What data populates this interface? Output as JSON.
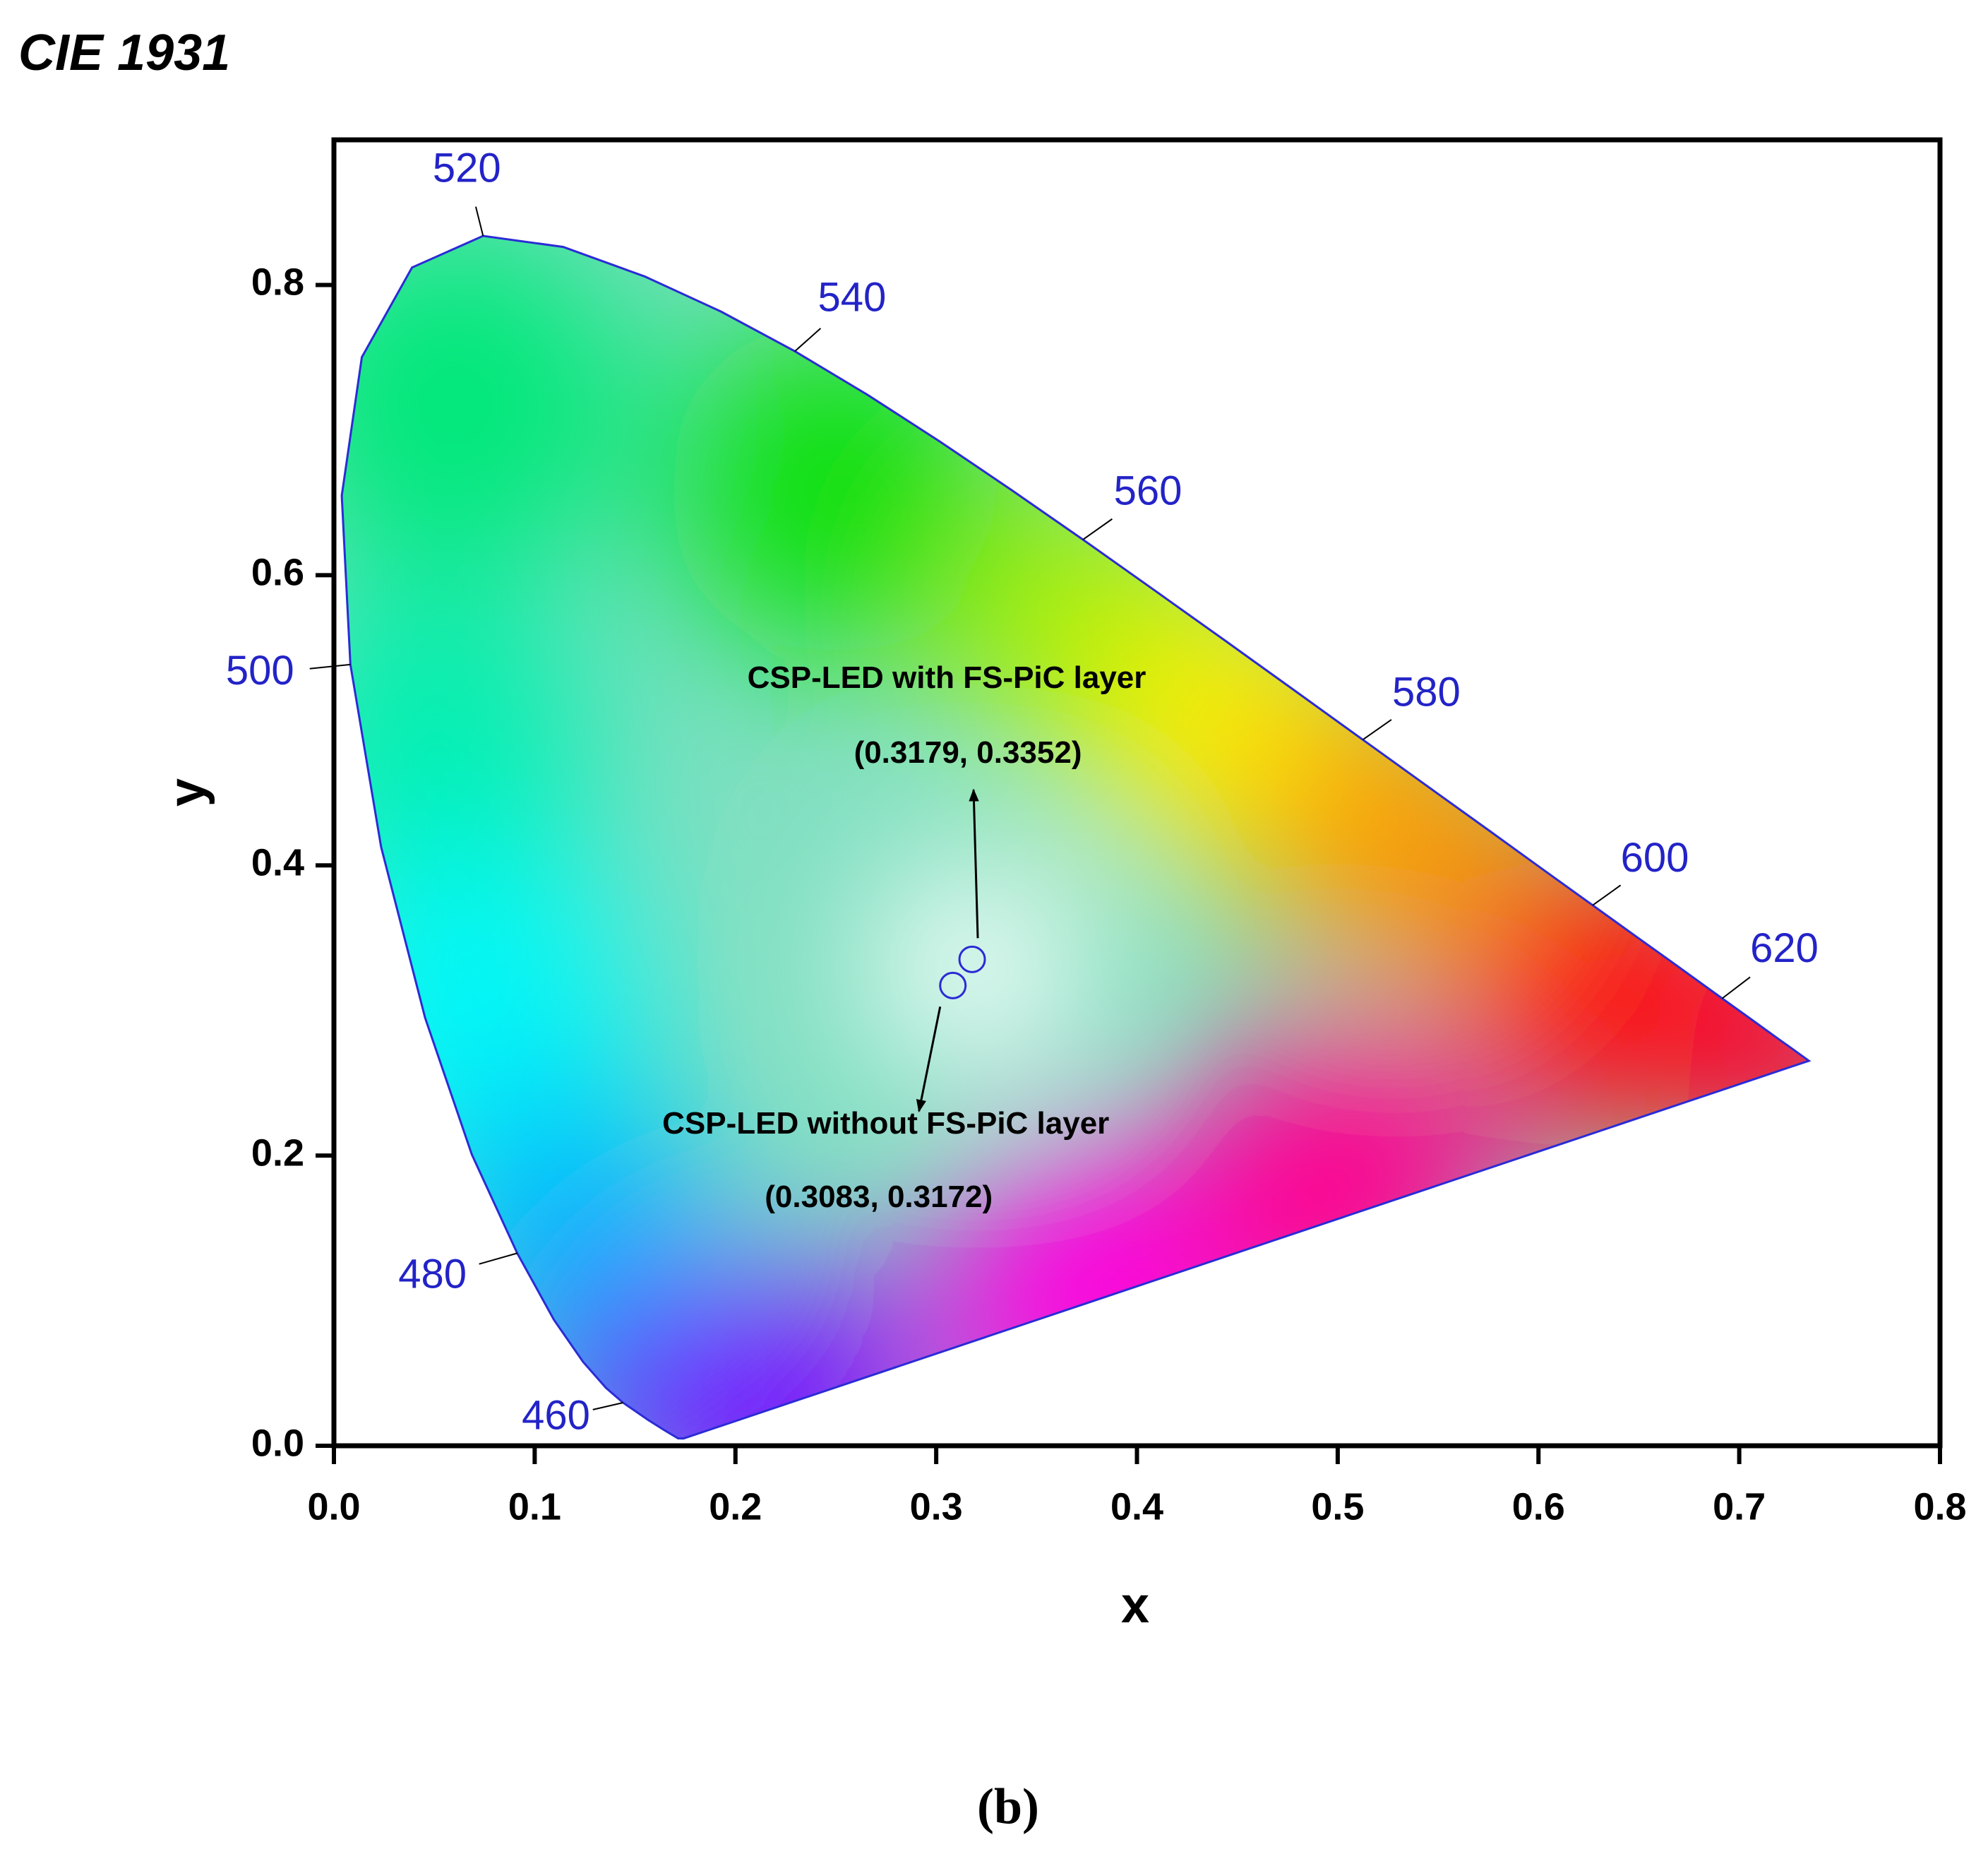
{
  "chart_data": {
    "type": "scatter",
    "title": "CIE 1931",
    "xlabel": "x",
    "ylabel": "y",
    "caption": "(b)",
    "xlim": [
      0,
      0.8
    ],
    "ylim": [
      0,
      0.9
    ],
    "xticks": [
      {
        "value": 0,
        "label": "0.0"
      },
      0.1,
      0.2,
      0.3,
      0.4,
      0.5,
      0.6,
      0.7,
      0.8
    ],
    "yticks": [
      {
        "value": 0,
        "label": "0.0"
      },
      0.2,
      0.4,
      0.6,
      0.8
    ],
    "x": [
      0.3179,
      0.3083
    ],
    "values": [
      0.3352,
      0.3172
    ],
    "point_names": [
      "CSP-LED with FS-PiC layer",
      "CSP-LED without FS-PiC layer"
    ],
    "value_labels": [
      "(0.3179, 0.3352)",
      "(0.3083, 0.3172)"
    ],
    "color": "#2b2bd6",
    "locus": {
      "x": [
        0.1741,
        0.1714,
        0.1644,
        0.1566,
        0.144,
        0.1355,
        0.1241,
        0.1096,
        0.0913,
        0.0687,
        0.0454,
        0.0235,
        0.0082,
        0.0039,
        0.0139,
        0.0389,
        0.0743,
        0.1142,
        0.1547,
        0.1929,
        0.2296,
        0.2658,
        0.3016,
        0.3373,
        0.3731,
        0.4087,
        0.4441,
        0.4788,
        0.5125,
        0.5448,
        0.5752,
        0.6029,
        0.627,
        0.6482,
        0.6658,
        0.6915,
        0.7079,
        0.719,
        0.726,
        0.7347
      ],
      "y": [
        0.005,
        0.0051,
        0.0109,
        0.0177,
        0.0297,
        0.0399,
        0.0578,
        0.0868,
        0.1327,
        0.2007,
        0.295,
        0.4127,
        0.5384,
        0.6548,
        0.7502,
        0.812,
        0.8338,
        0.8262,
        0.8059,
        0.7816,
        0.7543,
        0.7243,
        0.6923,
        0.6589,
        0.6245,
        0.5896,
        0.5547,
        0.5202,
        0.4866,
        0.4544,
        0.4242,
        0.3965,
        0.3725,
        0.3514,
        0.334,
        0.3083,
        0.292,
        0.2809,
        0.274,
        0.2653
      ],
      "color": "#2b2bd6"
    },
    "wavelength_labels": {
      "labels": [
        460,
        480,
        500,
        520,
        540,
        560,
        580,
        600,
        620
      ],
      "x": [
        0.144,
        0.0913,
        0.0082,
        0.0743,
        0.2296,
        0.3731,
        0.5125,
        0.627,
        0.6915
      ],
      "y": [
        0.0297,
        0.1327,
        0.5384,
        0.8338,
        0.7543,
        0.6245,
        0.4866,
        0.3725,
        0.3083
      ],
      "color": "#2323c8"
    }
  }
}
